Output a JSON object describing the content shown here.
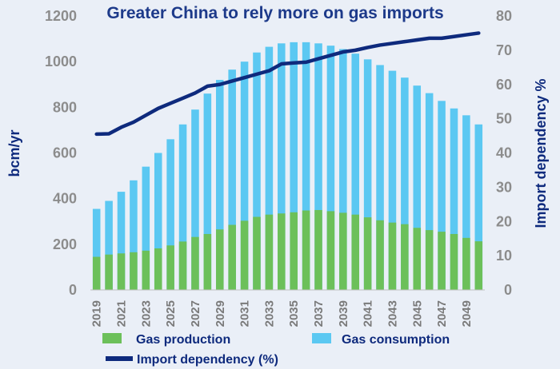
{
  "chart_data": {
    "type": "bar",
    "title": "Greater China to rely more on gas imports",
    "ylabel": "bcm/yr",
    "y2label": "Import dependency  %",
    "ylim": [
      0,
      1200
    ],
    "y2lim": [
      0,
      80
    ],
    "yticks": [
      "0",
      "200",
      "400",
      "600",
      "800",
      "1000",
      "1200"
    ],
    "y2ticks": [
      "0",
      "10",
      "20",
      "30",
      "40",
      "50",
      "60",
      "70",
      "80"
    ],
    "x": [
      2019,
      2020,
      2021,
      2022,
      2023,
      2024,
      2025,
      2026,
      2027,
      2028,
      2029,
      2030,
      2031,
      2032,
      2033,
      2034,
      2035,
      2036,
      2037,
      2038,
      2039,
      2040,
      2041,
      2042,
      2043,
      2044,
      2045,
      2046,
      2047,
      2048,
      2049,
      2050
    ],
    "x_tick_labels": [
      "2019",
      "2021",
      "2023",
      "2025",
      "2027",
      "2029",
      "2031",
      "2033",
      "2035",
      "2037",
      "2039",
      "2041",
      "2043",
      "2045",
      "2047",
      "2049"
    ],
    "grid": false,
    "legend_placement": "bottom",
    "series": [
      {
        "name": "Gas production",
        "kind": "bar",
        "axis": "left",
        "color": "#6cc05a",
        "values": [
          145,
          155,
          160,
          165,
          172,
          182,
          195,
          212,
          232,
          245,
          265,
          285,
          303,
          320,
          330,
          335,
          340,
          348,
          350,
          345,
          338,
          330,
          318,
          305,
          295,
          288,
          272,
          262,
          255,
          245,
          228,
          213
        ]
      },
      {
        "name": "Gas consumption",
        "kind": "bar",
        "axis": "left",
        "color": "#5bc8f2",
        "values": [
          355,
          390,
          430,
          480,
          540,
          600,
          660,
          725,
          790,
          860,
          920,
          965,
          1000,
          1040,
          1065,
          1080,
          1085,
          1085,
          1080,
          1070,
          1055,
          1035,
          1010,
          985,
          960,
          930,
          895,
          862,
          828,
          795,
          765,
          725
        ]
      },
      {
        "name": "Import dependency (%)",
        "kind": "line",
        "axis": "right",
        "color": "#0e2a7d",
        "values": [
          45.5,
          45.6,
          47.5,
          49,
          51,
          53,
          54.5,
          56,
          57.5,
          59.5,
          60,
          61,
          62,
          63,
          64,
          66,
          66.3,
          66.5,
          67.5,
          68.5,
          69.5,
          70,
          70.8,
          71.5,
          72,
          72.5,
          73,
          73.5,
          73.5,
          74,
          74.5,
          75
        ]
      }
    ]
  },
  "legend": {
    "production": "Gas production",
    "consumption": "Gas consumption",
    "dependency": "Import dependency (%)"
  }
}
